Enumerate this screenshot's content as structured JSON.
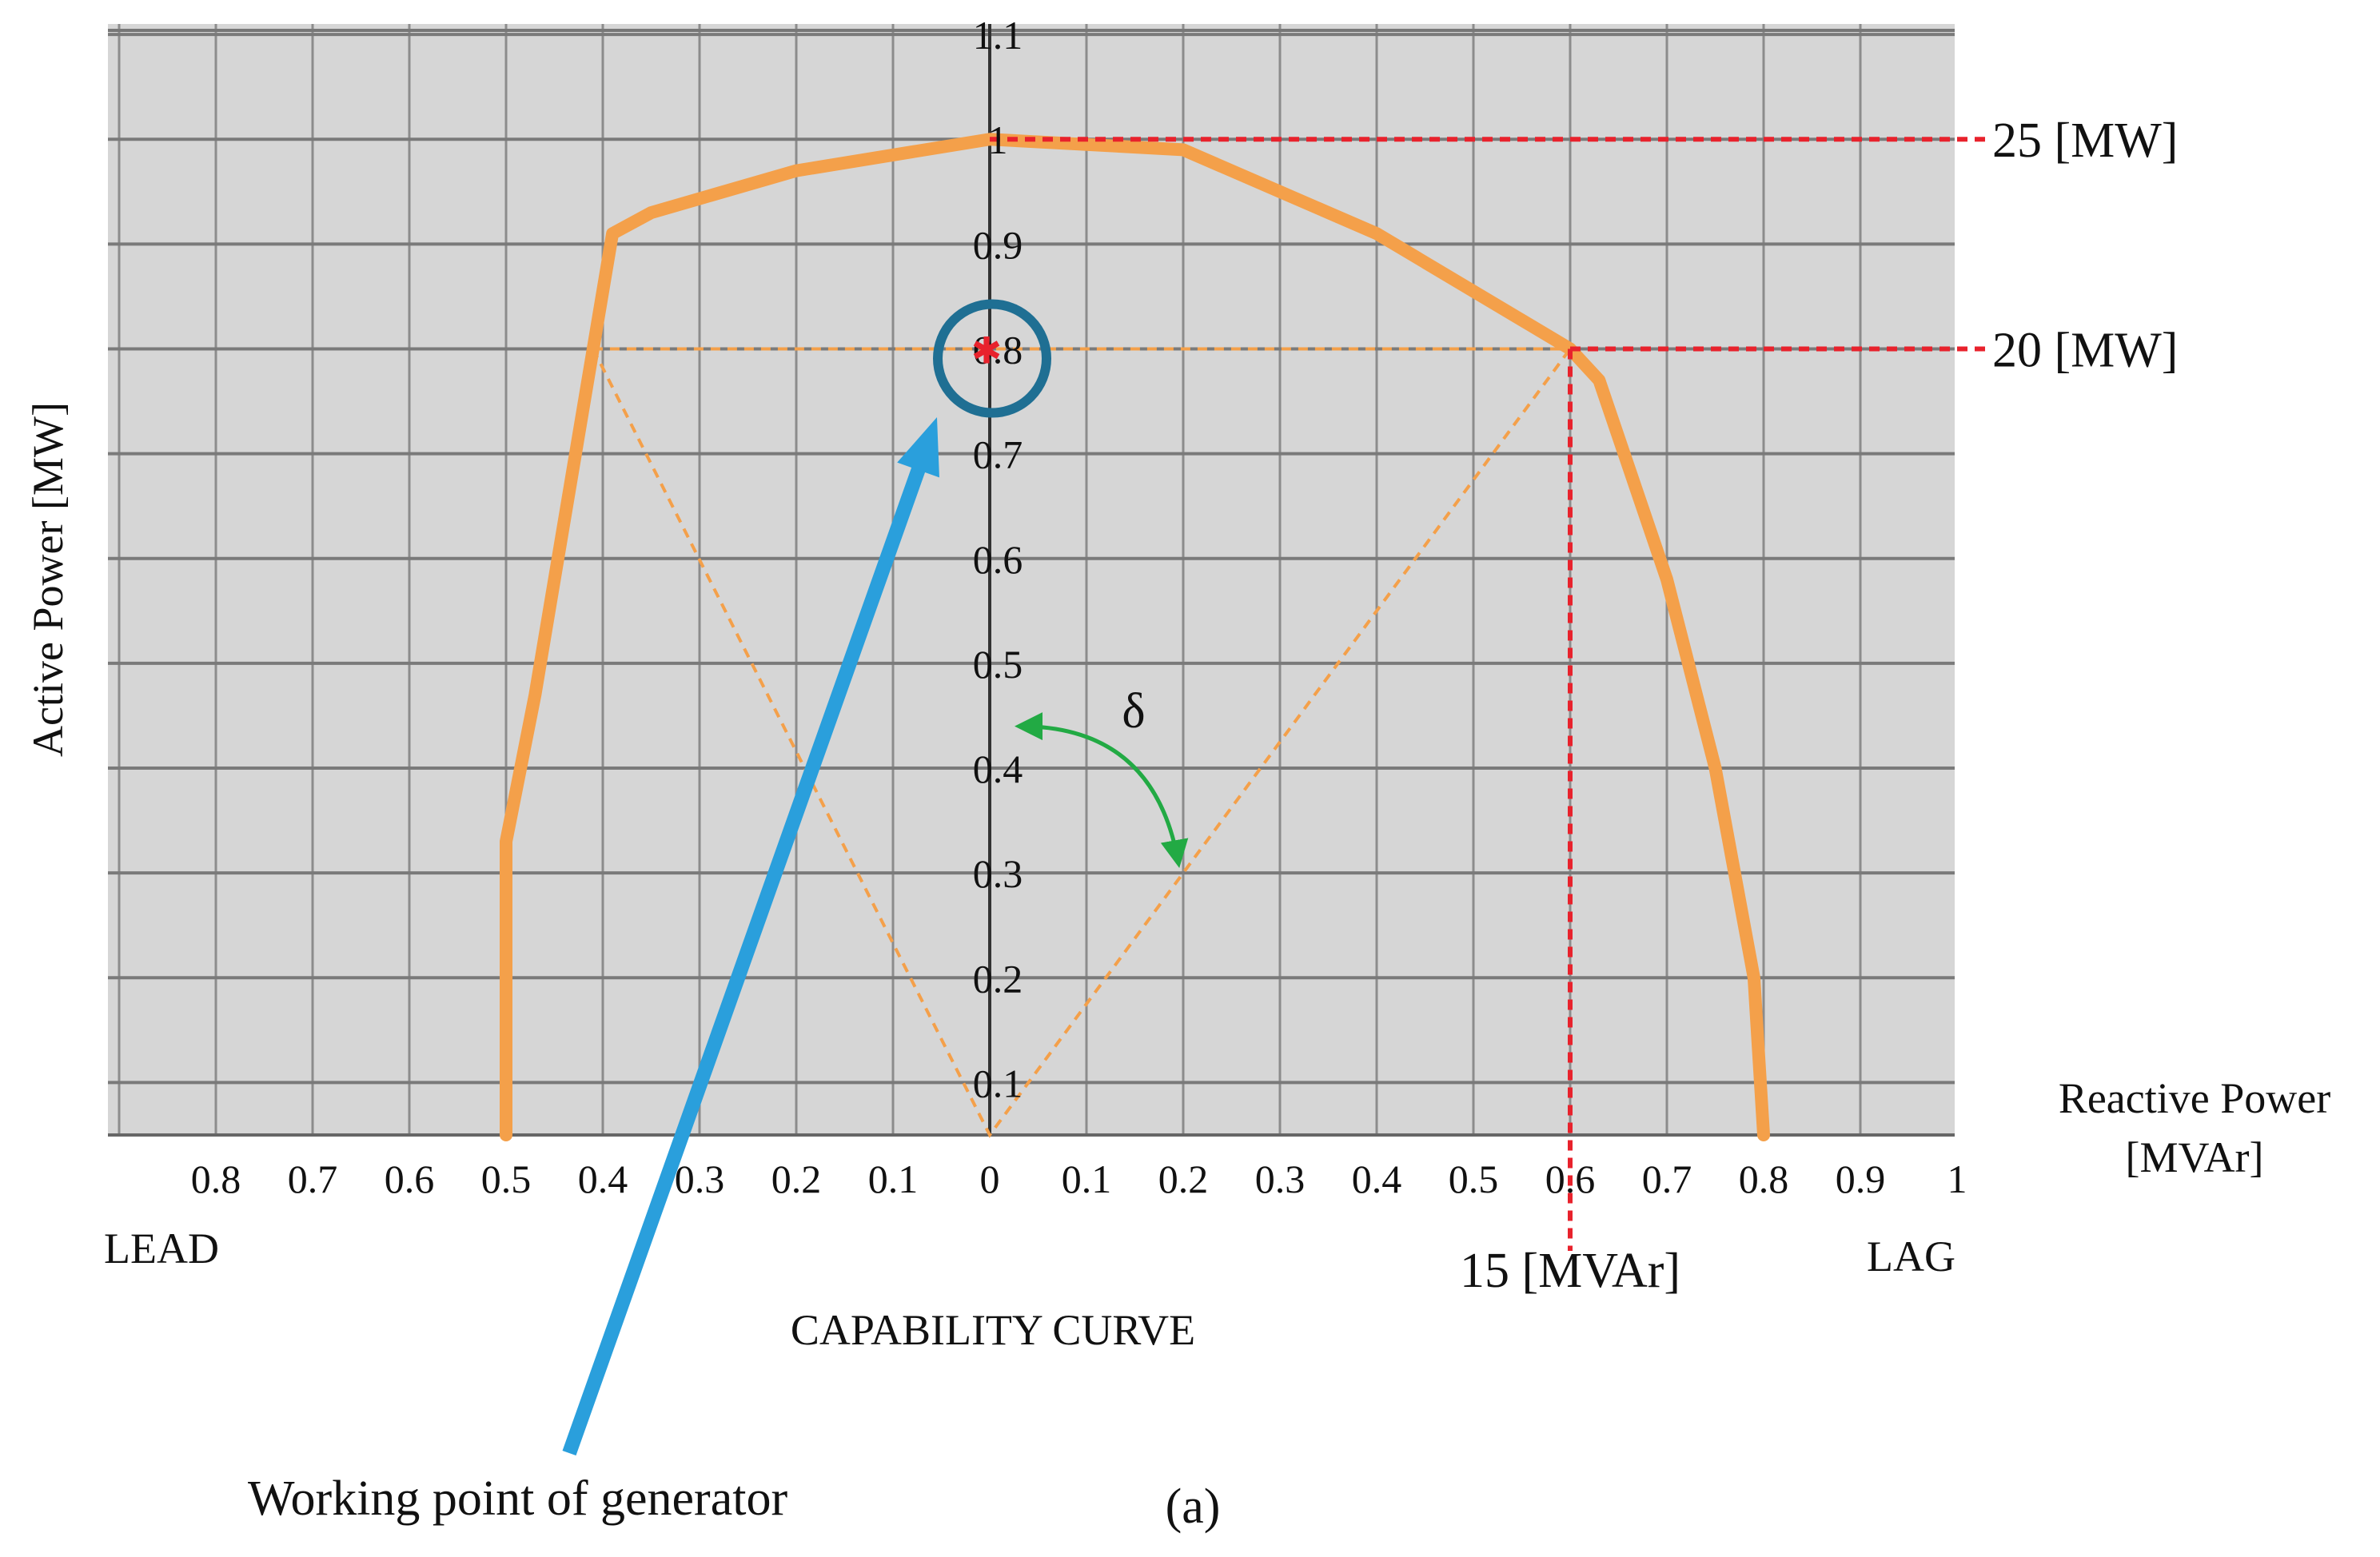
{
  "chart_data": {
    "type": "line",
    "title": "CAPABILITY CURVE",
    "panel_label": "(a)",
    "ylabel": "Active Power [MW]",
    "xlabel": [
      "Reactive Power",
      "[MVAr]"
    ],
    "x_side_labels": {
      "left": "LEAD",
      "right": "LAG"
    },
    "x_ticks_lead": [
      "0.8",
      "0.7",
      "0.6",
      "0.5",
      "0.4",
      "0.3",
      "0.2",
      "0.1"
    ],
    "x_ticks_lag": [
      "0",
      "0.1",
      "0.2",
      "0.3",
      "0.4",
      "0.5",
      "0.6",
      "0.7",
      "0.8",
      "0.9",
      "1"
    ],
    "y_ticks": [
      "0.1",
      "0.2",
      "0.3",
      "0.4",
      "0.5",
      "0.6",
      "0.7",
      "0.8",
      "0.9",
      "1",
      "1.1"
    ],
    "xlim": [
      -0.9,
      1.0
    ],
    "ylim": [
      0.05,
      1.11
    ],
    "series": [
      {
        "name": "",
        "color": "#f4a04a",
        "x": [
          -0.5,
          -0.5,
          -0.47,
          -0.43,
          -0.39,
          -0.35,
          -0.2,
          0.0,
          0.2,
          0.4,
          0.6,
          0.63,
          0.7,
          0.75,
          0.79,
          0.8
        ],
        "y": [
          0.05,
          0.33,
          0.47,
          0.69,
          0.91,
          0.93,
          0.97,
          1.0,
          0.99,
          0.91,
          0.8,
          0.77,
          0.58,
          0.4,
          0.2,
          0.05
        ]
      }
    ],
    "guide_lines": {
      "color": "#f4a04a",
      "polyline": {
        "x": [
          -0.41,
          0.0,
          0.6
        ],
        "y": [
          0.8,
          0.05,
          0.8
        ]
      },
      "horizontal_y": 0.8,
      "diagonal_to": {
        "x": 0.2,
        "y": 0.3
      }
    },
    "reference_lines": {
      "color": "#e8222c",
      "p_25_y": 1.0,
      "p_20_y": 0.8,
      "q_15_x": 0.6
    },
    "annotations": {
      "p_25": "25 [MW]",
      "p_20": "20 [MW]",
      "q_15": "15 [MVAr]",
      "delta": "δ",
      "delta_color": "#f2e40a",
      "delta_arrow_color": "#22aa44",
      "working_point": "Working point of generator",
      "working_point_x": 0.0,
      "working_point_y": 0.8,
      "working_point_arrow_color": "#2a9fdc",
      "working_point_circle_color": "#1f6f93"
    },
    "grid": true,
    "background": "#d6d6d6"
  }
}
